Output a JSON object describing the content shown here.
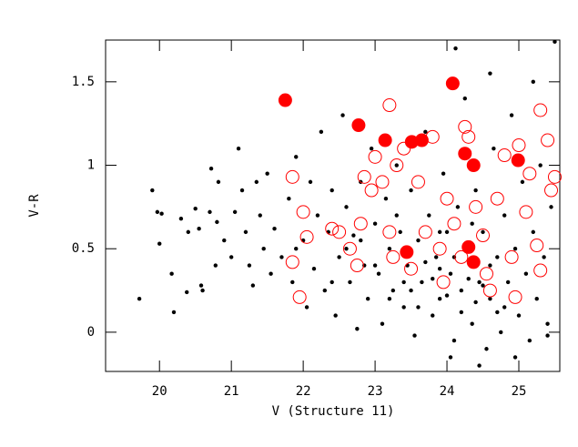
{
  "chart_data": {
    "type": "scatter",
    "x_label": "V (Structure 11)",
    "y_label": "V-R",
    "xlim": [
      19.25,
      25.57
    ],
    "ylim": [
      -0.235,
      1.75
    ],
    "xticks": [
      20,
      21,
      22,
      23,
      24,
      25
    ],
    "yticks": [
      0,
      0.5,
      1,
      1.5
    ],
    "series": [
      {
        "color": "#000000",
        "marker": "dot",
        "x": [
          19.72,
          19.9,
          19.97,
          20.03,
          20.0,
          20.17,
          20.2,
          20.3,
          20.38,
          20.4,
          20.5,
          20.55,
          20.58,
          20.6,
          20.7,
          20.72,
          20.8,
          20.82,
          20.78,
          20.9,
          21.0,
          21.05,
          21.1,
          21.15,
          21.2,
          21.25,
          21.3,
          21.35,
          21.4,
          21.45,
          21.5,
          21.55,
          21.6,
          21.7,
          21.8,
          21.85,
          21.9,
          22.0,
          22.05,
          22.1,
          22.15,
          22.2,
          22.25,
          22.3,
          22.35,
          22.4,
          22.45,
          22.5,
          22.55,
          22.6,
          22.65,
          22.7,
          22.75,
          22.8,
          22.85,
          22.9,
          22.95,
          23.0,
          23.05,
          23.1,
          23.15,
          23.2,
          23.25,
          23.3,
          23.35,
          23.4,
          23.45,
          23.5,
          23.55,
          23.6,
          23.65,
          23.7,
          23.75,
          23.8,
          23.85,
          23.9,
          23.95,
          24.0,
          24.05,
          24.1,
          24.15,
          24.2,
          24.25,
          24.3,
          24.35,
          24.4,
          24.45,
          24.5,
          24.55,
          24.6,
          24.65,
          24.7,
          24.75,
          24.8,
          24.85,
          24.9,
          24.95,
          25.0,
          25.05,
          25.1,
          25.15,
          25.2,
          25.25,
          25.3,
          25.35,
          25.4,
          25.45,
          25.5,
          24.12,
          24.6,
          25.2,
          23.6,
          23.9,
          24.0,
          24.2,
          24.4,
          24.5,
          24.7,
          23.5,
          23.7,
          23.8,
          24.1,
          24.3,
          24.6,
          24.8,
          23.4,
          23.2,
          23.0,
          22.8,
          24.05,
          24.45,
          24.95,
          25.4,
          23.3,
          23.9,
          24.35,
          22.6,
          22.4,
          21.9
        ],
        "y": [
          0.2,
          0.85,
          0.72,
          0.71,
          0.53,
          0.35,
          0.12,
          0.68,
          0.24,
          0.6,
          0.74,
          0.62,
          0.28,
          0.25,
          0.72,
          0.98,
          0.66,
          0.9,
          0.4,
          0.55,
          0.45,
          0.72,
          1.1,
          0.85,
          0.6,
          0.4,
          0.28,
          0.9,
          0.7,
          0.5,
          0.95,
          0.35,
          0.62,
          0.45,
          0.8,
          0.3,
          1.05,
          0.55,
          0.15,
          0.9,
          0.38,
          0.7,
          1.2,
          0.25,
          0.6,
          0.85,
          0.1,
          0.45,
          1.3,
          0.75,
          0.3,
          0.58,
          0.02,
          0.9,
          0.4,
          0.2,
          1.1,
          0.65,
          0.35,
          0.05,
          0.8,
          0.5,
          0.25,
          1.0,
          0.6,
          0.15,
          0.4,
          0.85,
          -0.02,
          0.55,
          0.3,
          1.2,
          0.7,
          0.1,
          0.45,
          0.2,
          0.95,
          0.6,
          0.35,
          -0.05,
          0.75,
          0.25,
          1.4,
          0.5,
          0.05,
          0.85,
          0.3,
          0.6,
          -0.1,
          0.2,
          1.1,
          0.45,
          0.0,
          0.7,
          0.3,
          1.3,
          0.5,
          0.1,
          0.9,
          0.35,
          -0.05,
          0.6,
          0.2,
          1.0,
          0.45,
          0.05,
          0.75,
          1.74,
          1.7,
          1.55,
          1.5,
          0.15,
          0.38,
          0.22,
          0.12,
          0.18,
          0.28,
          0.12,
          0.25,
          0.42,
          0.32,
          0.45,
          0.32,
          0.4,
          0.15,
          0.3,
          0.2,
          0.4,
          0.55,
          -0.15,
          -0.2,
          -0.15,
          -0.02,
          0.7,
          0.6,
          0.65,
          0.5,
          0.3,
          0.5
        ]
      },
      {
        "color": "#ff0000",
        "marker": "open-circle",
        "x": [
          21.85,
          22.0,
          22.05,
          21.85,
          21.95,
          22.4,
          22.5,
          22.65,
          22.75,
          22.8,
          22.85,
          22.95,
          23.0,
          23.1,
          23.2,
          23.2,
          23.25,
          23.3,
          23.4,
          23.5,
          23.6,
          23.7,
          23.8,
          23.9,
          24.0,
          24.1,
          24.25,
          24.3,
          24.4,
          24.5,
          24.6,
          24.7,
          24.8,
          24.9,
          24.95,
          25.0,
          25.1,
          25.15,
          25.25,
          25.3,
          25.3,
          25.4,
          25.45,
          25.5,
          24.2,
          24.55,
          23.95
        ],
        "y": [
          0.93,
          0.72,
          0.57,
          0.42,
          0.21,
          0.62,
          0.6,
          0.5,
          0.4,
          0.65,
          0.93,
          0.85,
          1.05,
          0.9,
          1.36,
          0.6,
          0.45,
          1.0,
          1.1,
          0.38,
          0.9,
          0.6,
          1.17,
          0.5,
          0.8,
          0.65,
          1.23,
          1.17,
          0.75,
          0.58,
          0.25,
          0.8,
          1.06,
          0.45,
          0.21,
          1.12,
          0.72,
          0.95,
          0.52,
          1.33,
          0.37,
          1.15,
          0.85,
          0.93,
          0.45,
          0.35,
          0.3
        ]
      },
      {
        "color": "#ff0000",
        "marker": "filled-circle",
        "x": [
          21.75,
          22.77,
          23.14,
          23.51,
          23.65,
          24.08,
          24.25,
          24.37,
          24.99,
          23.44,
          24.3,
          24.37
        ],
        "y": [
          1.39,
          1.24,
          1.15,
          1.14,
          1.15,
          1.49,
          1.07,
          1.0,
          1.03,
          0.48,
          0.51,
          0.42
        ]
      }
    ]
  }
}
